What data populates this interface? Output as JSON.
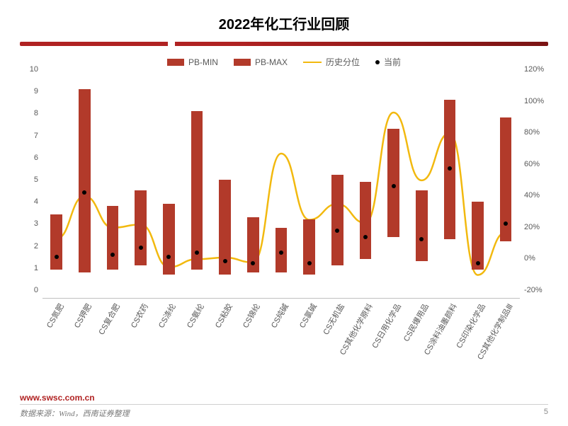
{
  "title": "2022年化工行业回顾",
  "legend": {
    "pb_min": "PB-MIN",
    "pb_max": "PB-MAX",
    "hist_pct": "历史分位",
    "current": "当前"
  },
  "chart": {
    "type": "bar+line+scatter",
    "background_color": "#ffffff",
    "bar_color": "#b23a2a",
    "line_color": "#f2b90f",
    "dot_color": "#000000",
    "line_width": 2.5,
    "bar_width_ratio": 0.42,
    "y_left": {
      "min": 0,
      "max": 10,
      "step": 1,
      "fontsize": 11,
      "color": "#595959"
    },
    "y_right": {
      "min": -20,
      "max": 120,
      "step": 20,
      "suffix": "%",
      "fontsize": 11,
      "color": "#595959"
    },
    "categories": [
      "CS氮肥",
      "CS钾肥",
      "CS复合肥",
      "CS农药",
      "CS涤纶",
      "CS氨纶",
      "CS粘胶",
      "CS锦纶",
      "CS纯碱",
      "CS氯碱",
      "CS无机盐",
      "CS其他化学原料",
      "CS日用化学品",
      "CS民爆用品",
      "CS涂料油墨颜料",
      "CS印染化学品",
      "CS其他化学制品Ⅲ"
    ],
    "pb_min": [
      1.3,
      1.2,
      1.3,
      1.5,
      1.1,
      1.3,
      1.1,
      1.2,
      1.2,
      1.1,
      1.5,
      1.8,
      2.8,
      1.7,
      2.7,
      1.3,
      2.6
    ],
    "pb_max": [
      3.8,
      9.5,
      4.2,
      4.9,
      4.3,
      8.5,
      5.4,
      3.7,
      3.2,
      3.6,
      5.6,
      5.3,
      7.7,
      4.9,
      9.0,
      4.4,
      8.2
    ],
    "current": [
      1.7,
      4.6,
      1.8,
      2.1,
      1.7,
      1.9,
      1.5,
      1.4,
      1.9,
      1.4,
      2.9,
      2.6,
      4.9,
      2.5,
      5.7,
      1.4,
      3.2
    ],
    "hist_pct": [
      18,
      45,
      25,
      27,
      0,
      5,
      6,
      3,
      72,
      30,
      40,
      28,
      98,
      55,
      85,
      -5,
      22
    ]
  },
  "footer": {
    "site": "www.swsc.com.cn",
    "source": "数据来源：Wind，西南证券整理",
    "page": "5"
  },
  "colors": {
    "title": "#000000",
    "accent_bar": "#b02222",
    "text_muted": "#595959",
    "footer_text": "#7a7a7a"
  }
}
